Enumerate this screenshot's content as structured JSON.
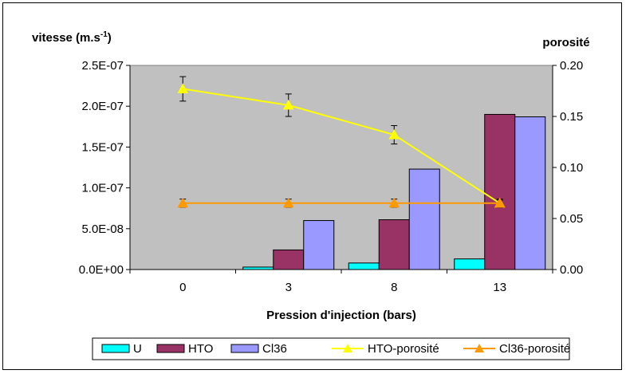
{
  "chart_data": {
    "type": "bar",
    "y_left_label_main": "vitesse (m.s",
    "y_left_label_sup": "-1",
    "y_left_label_end": ")",
    "y_right_label": "porosité",
    "xlabel": "Pression d'injection (bars)",
    "categories": [
      "0",
      "3",
      "8",
      "13"
    ],
    "y_left_ticks": [
      "0.0E+00",
      "5.0E-08",
      "1.0E-07",
      "1.5E-07",
      "2.0E-07",
      "2.5E-07"
    ],
    "y_right_ticks": [
      "0.00",
      "0.05",
      "0.10",
      "0.15",
      "0.20"
    ],
    "ylim": [
      0,
      2.5e-07
    ],
    "ylim_right": [
      0,
      0.2
    ],
    "grid": false,
    "plot_background": "#c0c0c0",
    "legend_position": "bottom",
    "series": [
      {
        "name": "U",
        "kind": "bar",
        "axis": "left",
        "color": "#00ffff",
        "values": [
          0,
          3e-09,
          8e-09,
          1.3e-08
        ]
      },
      {
        "name": "HTO",
        "kind": "bar",
        "axis": "left",
        "color": "#993366",
        "values": [
          0,
          2.4e-08,
          6.1e-08,
          1.9e-07
        ]
      },
      {
        "name": "Cl36",
        "kind": "bar",
        "axis": "left",
        "color": "#9999ff",
        "values": [
          0,
          6e-08,
          1.23e-07,
          1.87e-07
        ]
      },
      {
        "name": "HTO-porosité",
        "kind": "line",
        "axis": "right",
        "color": "#ffff00",
        "marker": "triangle",
        "values": [
          0.177,
          0.161,
          0.132,
          0.065
        ],
        "error": [
          0.012,
          0.011,
          0.009,
          0.003
        ]
      },
      {
        "name": "Cl36-porosité",
        "kind": "line",
        "axis": "right",
        "color": "#ff9900",
        "marker": "triangle",
        "values": [
          0.065,
          0.065,
          0.065,
          0.065
        ],
        "error": [
          0.004,
          0.004,
          0.004,
          0.004
        ]
      }
    ]
  }
}
